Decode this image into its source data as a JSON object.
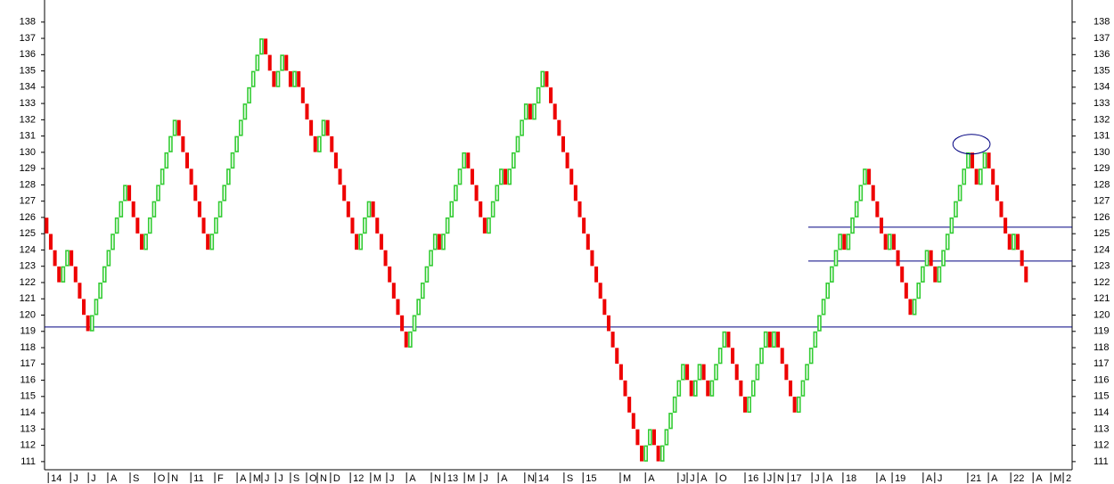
{
  "chart_data": {
    "type": "renko",
    "values": [
      126,
      125,
      124,
      123,
      122,
      123,
      124,
      123,
      122,
      121,
      120,
      119,
      120,
      121,
      122,
      123,
      124,
      125,
      126,
      127,
      128,
      127,
      126,
      125,
      124,
      125,
      126,
      127,
      128,
      129,
      130,
      131,
      132,
      131,
      130,
      129,
      128,
      127,
      126,
      125,
      124,
      125,
      126,
      127,
      128,
      129,
      130,
      131,
      132,
      133,
      134,
      135,
      136,
      137,
      136,
      135,
      134,
      135,
      136,
      135,
      134,
      135,
      134,
      133,
      132,
      131,
      130,
      131,
      132,
      131,
      130,
      129,
      128,
      127,
      126,
      125,
      124,
      125,
      126,
      127,
      126,
      125,
      124,
      123,
      122,
      121,
      120,
      119,
      118,
      119,
      120,
      121,
      122,
      123,
      124,
      125,
      124,
      125,
      126,
      127,
      128,
      129,
      130,
      129,
      128,
      127,
      126,
      125,
      126,
      127,
      128,
      129,
      128,
      129,
      130,
      131,
      132,
      133,
      132,
      133,
      134,
      135,
      134,
      133,
      132,
      131,
      130,
      129,
      128,
      127,
      126,
      125,
      124,
      123,
      122,
      121,
      120,
      119,
      118,
      117,
      116,
      115,
      114,
      113,
      112,
      111,
      112,
      113,
      112,
      111,
      112,
      113,
      114,
      115,
      116,
      117,
      116,
      115,
      116,
      117,
      116,
      115,
      116,
      117,
      118,
      119,
      118,
      117,
      116,
      115,
      114,
      115,
      116,
      117,
      118,
      119,
      118,
      119,
      118,
      117,
      116,
      115,
      114,
      115,
      116,
      117,
      118,
      119,
      120,
      121,
      122,
      123,
      124,
      125,
      124,
      125,
      126,
      127,
      128,
      129,
      128,
      127,
      126,
      125,
      124,
      125,
      124,
      123,
      122,
      121,
      120,
      121,
      122,
      123,
      124,
      123,
      122,
      123,
      124,
      125,
      126,
      127,
      128,
      129,
      130,
      129,
      128,
      129,
      130,
      129,
      128,
      127,
      126,
      125,
      124,
      125,
      124,
      123,
      122
    ],
    "up_color": "#33cc33",
    "down_color": "#ee0000",
    "line_color": "#000080",
    "xlim": [
      0,
      248
    ],
    "xticks": [
      {
        "value": 0.9,
        "label": "14"
      },
      {
        "value": 6.3,
        "label": "J"
      },
      {
        "value": 10.6,
        "label": "J"
      },
      {
        "value": 15.3,
        "label": "A"
      },
      {
        "value": 20.7,
        "label": "S"
      },
      {
        "value": 26.7,
        "label": "O"
      },
      {
        "value": 30.0,
        "label": "N"
      },
      {
        "value": 35.4,
        "label": "11"
      },
      {
        "value": 41.2,
        "label": "F"
      },
      {
        "value": 46.6,
        "label": "A"
      },
      {
        "value": 49.8,
        "label": "M"
      },
      {
        "value": 52.6,
        "label": "J"
      },
      {
        "value": 55.9,
        "label": "J"
      },
      {
        "value": 59.5,
        "label": "S"
      },
      {
        "value": 63.4,
        "label": "O"
      },
      {
        "value": 66.0,
        "label": "N"
      },
      {
        "value": 69.2,
        "label": "D"
      },
      {
        "value": 74.0,
        "label": "12"
      },
      {
        "value": 78.9,
        "label": "M"
      },
      {
        "value": 82.8,
        "label": "J"
      },
      {
        "value": 87.6,
        "label": "A"
      },
      {
        "value": 93.6,
        "label": "N"
      },
      {
        "value": 96.8,
        "label": "13"
      },
      {
        "value": 101.6,
        "label": "M"
      },
      {
        "value": 105.5,
        "label": "J"
      },
      {
        "value": 109.8,
        "label": "A"
      },
      {
        "value": 116.2,
        "label": "N"
      },
      {
        "value": 118.8,
        "label": "14"
      },
      {
        "value": 125.7,
        "label": "S"
      },
      {
        "value": 130.3,
        "label": "15"
      },
      {
        "value": 139.3,
        "label": "M"
      },
      {
        "value": 145.4,
        "label": "A"
      },
      {
        "value": 153.3,
        "label": "J"
      },
      {
        "value": 155.5,
        "label": "J"
      },
      {
        "value": 158.1,
        "label": "A"
      },
      {
        "value": 162.6,
        "label": "O"
      },
      {
        "value": 169.5,
        "label": "16"
      },
      {
        "value": 174.2,
        "label": "J"
      },
      {
        "value": 176.6,
        "label": "N"
      },
      {
        "value": 179.9,
        "label": "17"
      },
      {
        "value": 185.7,
        "label": "J"
      },
      {
        "value": 188.5,
        "label": "A"
      },
      {
        "value": 193.2,
        "label": "18"
      },
      {
        "value": 201.4,
        "label": "A"
      },
      {
        "value": 205.1,
        "label": "19"
      },
      {
        "value": 212.6,
        "label": "A"
      },
      {
        "value": 215.4,
        "label": "J"
      },
      {
        "value": 223.4,
        "label": "21"
      },
      {
        "value": 228.4,
        "label": "A"
      },
      {
        "value": 233.8,
        "label": "22"
      },
      {
        "value": 239.2,
        "label": "A"
      },
      {
        "value": 243.5,
        "label": "M"
      },
      {
        "value": 246.5,
        "label": "2"
      }
    ],
    "ylim": [
      110.5,
      138.7
    ],
    "yticks": [
      111,
      112,
      113,
      114,
      115,
      116,
      117,
      118,
      119,
      120,
      121,
      122,
      123,
      124,
      125,
      126,
      127,
      128,
      129,
      130,
      131,
      132,
      133,
      134,
      135,
      136,
      137,
      138
    ],
    "hlines": [
      {
        "value": 119.27,
        "x_start": 0
      },
      {
        "value": 123.32,
        "x_start": 184.8
      },
      {
        "value": 125.4,
        "x_start": 184.8
      }
    ],
    "ellipse": {
      "x": 224.3,
      "y": 130.5,
      "rx": 4.5,
      "ry": 0.6
    }
  }
}
